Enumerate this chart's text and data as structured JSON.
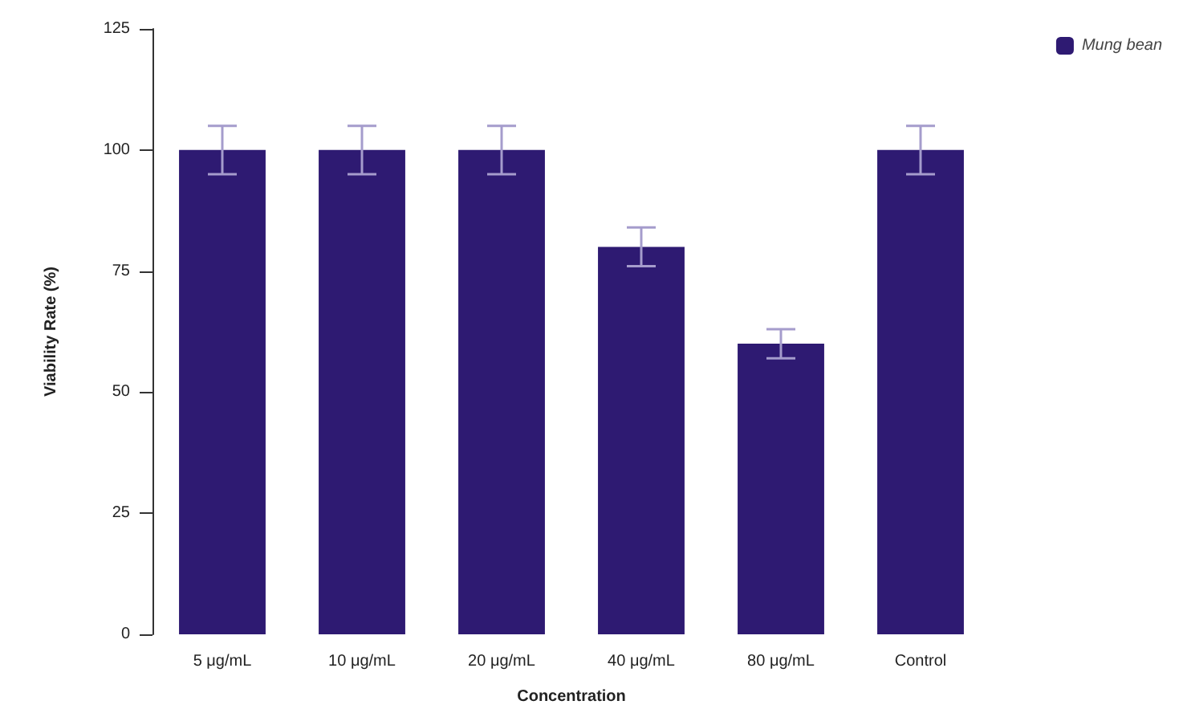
{
  "chart_data": {
    "type": "bar",
    "xlabel": "Concentration",
    "ylabel": "Viability Rate (%)",
    "categories": [
      "5 μg/mL",
      "10 μg/mL",
      "20 μg/mL",
      "40 μg/mL",
      "80 μg/mL",
      "Control"
    ],
    "series": [
      {
        "name": "Mung bean",
        "color": "#2e1a72",
        "values": [
          100,
          100,
          100,
          80,
          60,
          100
        ],
        "errors": [
          5,
          5,
          5,
          4,
          3,
          5
        ]
      }
    ],
    "ylim": [
      0,
      125
    ],
    "yticks": [
      0,
      25,
      50,
      75,
      100,
      125
    ],
    "grid": false,
    "legend": "top right"
  }
}
